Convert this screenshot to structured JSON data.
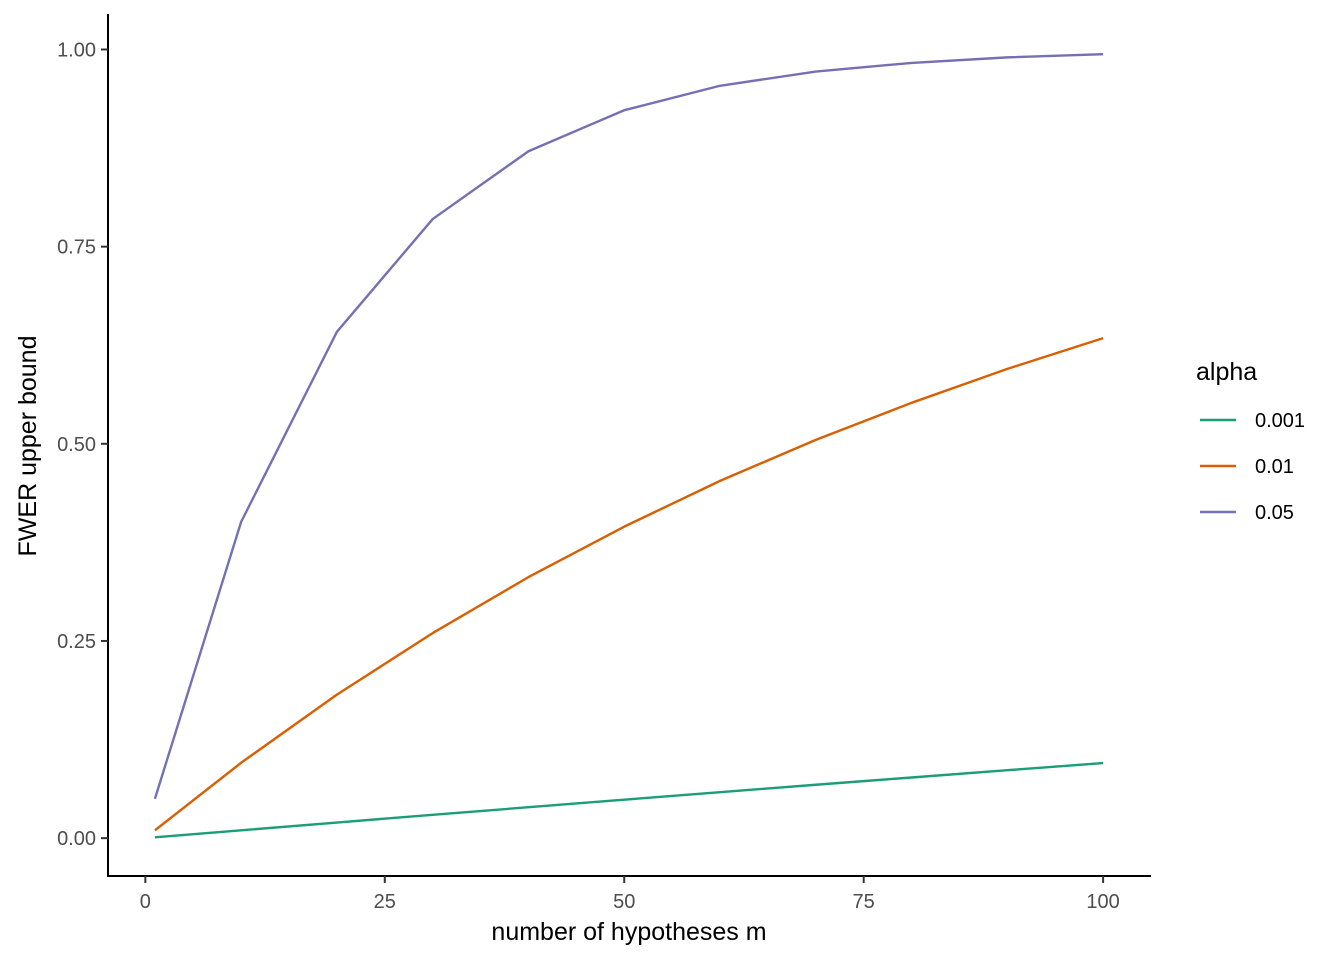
{
  "chart_data": {
    "type": "line",
    "title": "",
    "xlabel": "number of hypotheses m",
    "ylabel": "FWER upper bound",
    "x": [
      1,
      10,
      20,
      30,
      40,
      50,
      60,
      70,
      80,
      90,
      100
    ],
    "xlim": [
      -3.9,
      105
    ],
    "ylim": [
      -0.048,
      1.045
    ],
    "x_ticks": [
      0,
      25,
      50,
      75,
      100
    ],
    "x_tick_labels": [
      "0",
      "25",
      "50",
      "75",
      "100"
    ],
    "y_ticks": [
      0,
      0.25,
      0.5,
      0.75,
      1
    ],
    "y_tick_labels": [
      "0.00",
      "0.25",
      "0.50",
      "0.75",
      "1.00"
    ],
    "grid": false,
    "legend": {
      "title": "alpha",
      "position": "right"
    },
    "series": [
      {
        "name": "0.001",
        "color": "#1b9e77",
        "values": [
          0.001,
          0.00995,
          0.0198,
          0.0296,
          0.0392,
          0.0488,
          0.0583,
          0.0677,
          0.0769,
          0.0861,
          0.0952
        ]
      },
      {
        "name": "0.01",
        "color": "#d95f02",
        "values": [
          0.01,
          0.0956,
          0.182,
          0.26,
          0.331,
          0.395,
          0.453,
          0.505,
          0.552,
          0.595,
          0.634
        ]
      },
      {
        "name": "0.05",
        "color": "#7570b3",
        "values": [
          0.05,
          0.401,
          0.642,
          0.785,
          0.871,
          0.923,
          0.954,
          0.972,
          0.983,
          0.99,
          0.994
        ]
      }
    ]
  }
}
